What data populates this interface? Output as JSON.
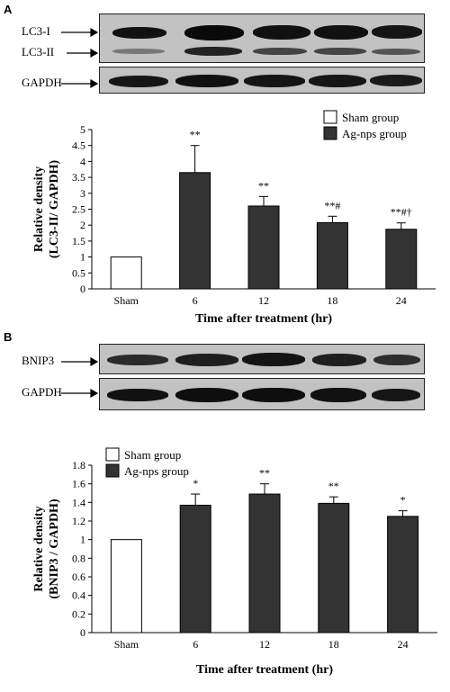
{
  "panels": [
    {
      "letter": "A",
      "blot_labels": [
        "LC3-I",
        "LC3-II",
        "GAPDH"
      ],
      "legend": [
        "Sham group",
        "Ag-nps group"
      ]
    },
    {
      "letter": "B",
      "blot_labels": [
        "BNIP3",
        "GAPDH"
      ],
      "legend": [
        "Sham group",
        "Ag-nps group"
      ]
    }
  ],
  "colors": {
    "sham": "#ffffff",
    "agnps": "#333333",
    "blot_bg": "#c2c2c2",
    "band": "#111111"
  },
  "chart_data": [
    {
      "type": "bar",
      "categories": [
        "Sham",
        "6",
        "12",
        "18",
        "24"
      ],
      "series": [
        {
          "name": "Sham group",
          "values": [
            1,
            null,
            null,
            null,
            null
          ]
        },
        {
          "name": "Ag-nps group",
          "values": [
            null,
            3.65,
            2.6,
            2.08,
            1.87
          ]
        }
      ],
      "errors": [
        0,
        0.85,
        0.3,
        0.2,
        0.2
      ],
      "annotations": [
        "",
        "**",
        "**",
        "**#",
        "**#†"
      ],
      "title": "",
      "xlabel": "Time after treatment (hr)",
      "ylabel": [
        "Relative density",
        "(LC3-II/ GAPDH)"
      ],
      "ylim": [
        0,
        5
      ],
      "yticks": [
        0,
        0.5,
        1,
        1.5,
        2,
        2.5,
        3,
        3.5,
        4,
        4.5,
        5
      ],
      "ytick_labels": [
        "0",
        "0.5",
        "1",
        "1.5",
        "2",
        "2.5",
        "3",
        "3.5",
        "4",
        "4.5",
        "5"
      ],
      "grid": false,
      "legend_position": "top-right"
    },
    {
      "type": "bar",
      "categories": [
        "Sham",
        "6",
        "12",
        "18",
        "24"
      ],
      "series": [
        {
          "name": "Sham group",
          "values": [
            1,
            null,
            null,
            null,
            null
          ]
        },
        {
          "name": "Ag-nps group",
          "values": [
            null,
            1.37,
            1.49,
            1.39,
            1.25
          ]
        }
      ],
      "errors": [
        0,
        0.12,
        0.11,
        0.07,
        0.06
      ],
      "annotations": [
        "",
        "*",
        "**",
        "**",
        "*"
      ],
      "title": "",
      "xlabel": "Time after treatment (hr)",
      "ylabel": [
        "Relative density",
        "(BNIP3 / GAPDH)"
      ],
      "ylim": [
        0,
        1.8
      ],
      "yticks": [
        0,
        0.2,
        0.4,
        0.6,
        0.8,
        1,
        1.2,
        1.4,
        1.6,
        1.8
      ],
      "ytick_labels": [
        "0",
        "0.2",
        "0.4",
        "0.6",
        "0.8",
        "1",
        "1.2",
        "1.4",
        "1.6",
        "1.8"
      ],
      "grid": false,
      "legend_position": "top-left"
    }
  ]
}
